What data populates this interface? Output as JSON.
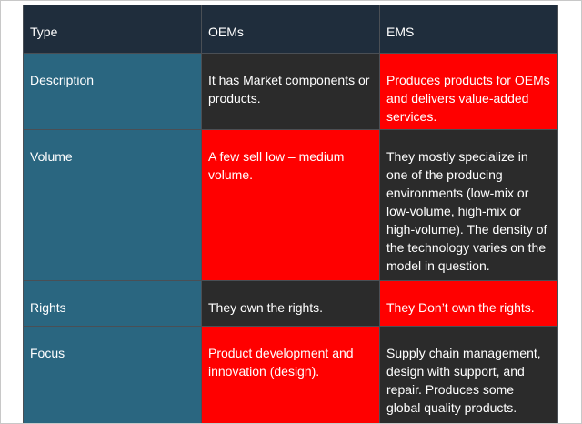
{
  "table": {
    "header": [
      "Type",
      "OEMs",
      "EMS"
    ],
    "rows": [
      [
        "Description",
        "It has Market components or products.",
        "Produces products for OEMs and delivers value-added services."
      ],
      [
        "Volume",
        "A few sell low – medium volume.",
        "They mostly specialize in one of the producing environments (low-mix or low-volume, high-mix or high-volume). The density of the technology varies on the model in question."
      ],
      [
        "Rights",
        "They own the rights.",
        "They Don’t own the rights."
      ],
      [
        "Focus",
        "Product development and innovation (design).",
        "Supply chain management, design with support, and repair. Produces some global quality products."
      ]
    ]
  }
}
